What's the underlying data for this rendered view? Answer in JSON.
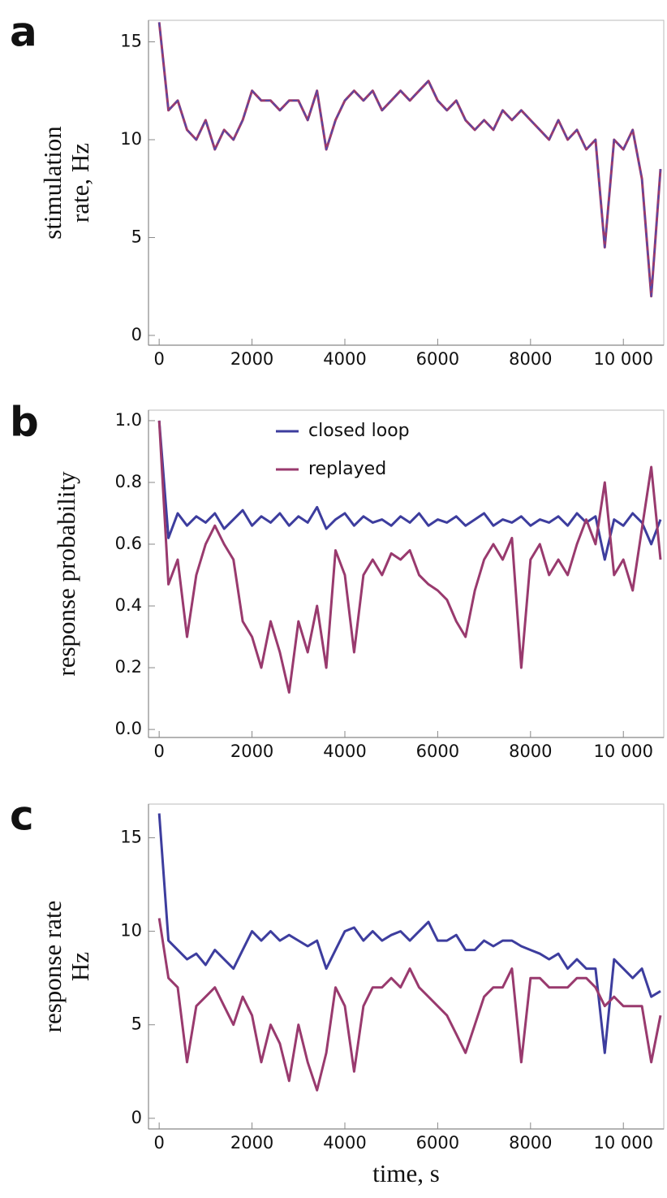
{
  "chart_data": [
    {
      "type": "line",
      "panel_label": "a",
      "ylabel": [
        "stimulation",
        "rate, Hz"
      ],
      "x": [
        0,
        200,
        400,
        600,
        800,
        1000,
        1200,
        1400,
        1600,
        1800,
        2000,
        2200,
        2400,
        2600,
        2800,
        3000,
        3200,
        3400,
        3600,
        3800,
        4000,
        4200,
        4400,
        4600,
        4800,
        5000,
        5200,
        5400,
        5600,
        5800,
        6000,
        6200,
        6400,
        6600,
        6800,
        7000,
        7200,
        7400,
        7600,
        7800,
        8000,
        8200,
        8400,
        8600,
        8800,
        9000,
        9200,
        9400,
        9600,
        9800,
        10000,
        10200,
        10400,
        10600,
        10800
      ],
      "values": [
        16,
        11.5,
        12,
        10.5,
        10,
        11,
        9.5,
        10.5,
        10,
        11,
        12.5,
        12,
        12,
        11.5,
        12,
        12,
        11,
        12.5,
        9.5,
        11,
        12,
        12.5,
        12,
        12.5,
        11.5,
        12,
        12.5,
        12,
        12.5,
        13,
        12,
        11.5,
        12,
        11,
        10.5,
        11,
        10.5,
        11.5,
        11,
        11.5,
        11,
        10.5,
        10,
        11,
        10,
        10.5,
        9.5,
        10,
        4.5,
        10,
        9.5,
        10.5,
        8,
        2,
        8.5
      ],
      "color": "#993a6e",
      "dash_color": "#4a4ab0",
      "xlim": [
        -230,
        10870
      ],
      "ylim": [
        -0.5,
        16.1
      ],
      "xticks": [
        0,
        2000,
        4000,
        6000,
        8000,
        {
          "value": 10000,
          "label": "10 000"
        }
      ],
      "yticks": [
        0,
        5,
        10,
        15
      ]
    },
    {
      "type": "line",
      "panel_label": "b",
      "ylabel": [
        "response probability"
      ],
      "legend": "top",
      "x": [
        0,
        200,
        400,
        600,
        800,
        1000,
        1200,
        1400,
        1600,
        1800,
        2000,
        2200,
        2400,
        2600,
        2800,
        3000,
        3200,
        3400,
        3600,
        3800,
        4000,
        4200,
        4400,
        4600,
        4800,
        5000,
        5200,
        5400,
        5600,
        5800,
        6000,
        6200,
        6400,
        6600,
        6800,
        7000,
        7200,
        7400,
        7600,
        7800,
        8000,
        8200,
        8400,
        8600,
        8800,
        9000,
        9200,
        9400,
        9600,
        9800,
        10000,
        10200,
        10400,
        10600,
        10800
      ],
      "series": [
        {
          "name": "closed loop",
          "color": "#3d3d9e",
          "values": [
            1.0,
            0.62,
            0.7,
            0.66,
            0.69,
            0.67,
            0.7,
            0.65,
            0.68,
            0.71,
            0.66,
            0.69,
            0.67,
            0.7,
            0.66,
            0.69,
            0.67,
            0.72,
            0.65,
            0.68,
            0.7,
            0.66,
            0.69,
            0.67,
            0.68,
            0.66,
            0.69,
            0.67,
            0.7,
            0.66,
            0.68,
            0.67,
            0.69,
            0.66,
            0.68,
            0.7,
            0.66,
            0.68,
            0.67,
            0.69,
            0.66,
            0.68,
            0.67,
            0.69,
            0.66,
            0.7,
            0.67,
            0.69,
            0.55,
            0.68,
            0.66,
            0.7,
            0.67,
            0.6,
            0.68
          ]
        },
        {
          "name": "replayed",
          "color": "#993a6e",
          "values": [
            1.0,
            0.47,
            0.55,
            0.3,
            0.5,
            0.6,
            0.66,
            0.6,
            0.55,
            0.35,
            0.3,
            0.2,
            0.35,
            0.25,
            0.12,
            0.35,
            0.25,
            0.4,
            0.2,
            0.58,
            0.5,
            0.25,
            0.5,
            0.55,
            0.5,
            0.57,
            0.55,
            0.58,
            0.5,
            0.47,
            0.45,
            0.42,
            0.35,
            0.3,
            0.45,
            0.55,
            0.6,
            0.55,
            0.62,
            0.2,
            0.55,
            0.6,
            0.5,
            0.55,
            0.5,
            0.6,
            0.68,
            0.6,
            0.8,
            0.5,
            0.55,
            0.45,
            0.65,
            0.85,
            0.55
          ]
        }
      ],
      "xlim": [
        -230,
        10870
      ],
      "ylim": [
        -0.026,
        1.034
      ],
      "xticks": [
        0,
        2000,
        4000,
        6000,
        8000,
        {
          "value": 10000,
          "label": "10 000"
        }
      ],
      "yticks": [
        {
          "value": 0,
          "label": "0.0"
        },
        0.2,
        0.4,
        0.6,
        0.8,
        {
          "value": 1,
          "label": "1.0"
        }
      ]
    },
    {
      "type": "line",
      "panel_label": "c",
      "ylabel": [
        "response rate",
        "Hz"
      ],
      "xlabel": "time, s",
      "x": [
        0,
        200,
        400,
        600,
        800,
        1000,
        1200,
        1400,
        1600,
        1800,
        2000,
        2200,
        2400,
        2600,
        2800,
        3000,
        3200,
        3400,
        3600,
        3800,
        4000,
        4200,
        4400,
        4600,
        4800,
        5000,
        5200,
        5400,
        5600,
        5800,
        6000,
        6200,
        6400,
        6600,
        6800,
        7000,
        7200,
        7400,
        7600,
        7800,
        8000,
        8200,
        8400,
        8600,
        8800,
        9000,
        9200,
        9400,
        9600,
        9800,
        10000,
        10200,
        10400,
        10600,
        10800
      ],
      "series": [
        {
          "name": "closed loop",
          "color": "#3d3d9e",
          "values": [
            16.3,
            9.5,
            9,
            8.5,
            8.8,
            8.2,
            9,
            8.5,
            8,
            9,
            10,
            9.5,
            10,
            9.5,
            9.8,
            9.5,
            9.2,
            9.5,
            8,
            9,
            10,
            10.2,
            9.5,
            10,
            9.5,
            9.8,
            10,
            9.5,
            10,
            10.5,
            9.5,
            9.5,
            9.8,
            9,
            9,
            9.5,
            9.2,
            9.5,
            9.5,
            9.2,
            9,
            8.8,
            8.5,
            8.8,
            8,
            8.5,
            8,
            8,
            3.5,
            8.5,
            8,
            7.5,
            8,
            6.5,
            6.8
          ]
        },
        {
          "name": "replayed",
          "color": "#993a6e",
          "values": [
            10.7,
            7.5,
            7,
            3,
            6,
            6.5,
            7,
            6,
            5,
            6.5,
            5.5,
            3,
            5,
            4,
            2,
            5,
            3,
            1.5,
            3.5,
            7,
            6,
            2.5,
            6,
            7,
            7,
            7.5,
            7,
            8,
            7,
            6.5,
            6,
            5.5,
            4.5,
            3.5,
            5,
            6.5,
            7,
            7,
            8,
            3,
            7.5,
            7.5,
            7,
            7,
            7,
            7.5,
            7.5,
            7,
            6,
            6.5,
            6,
            6,
            6,
            3,
            5.5
          ]
        }
      ],
      "xlim": [
        -230,
        10870
      ],
      "ylim": [
        -0.57,
        16.8
      ],
      "xticks": [
        0,
        2000,
        4000,
        6000,
        8000,
        {
          "value": 10000,
          "label": "10 000"
        }
      ],
      "yticks": [
        0,
        5,
        10,
        15
      ]
    }
  ]
}
